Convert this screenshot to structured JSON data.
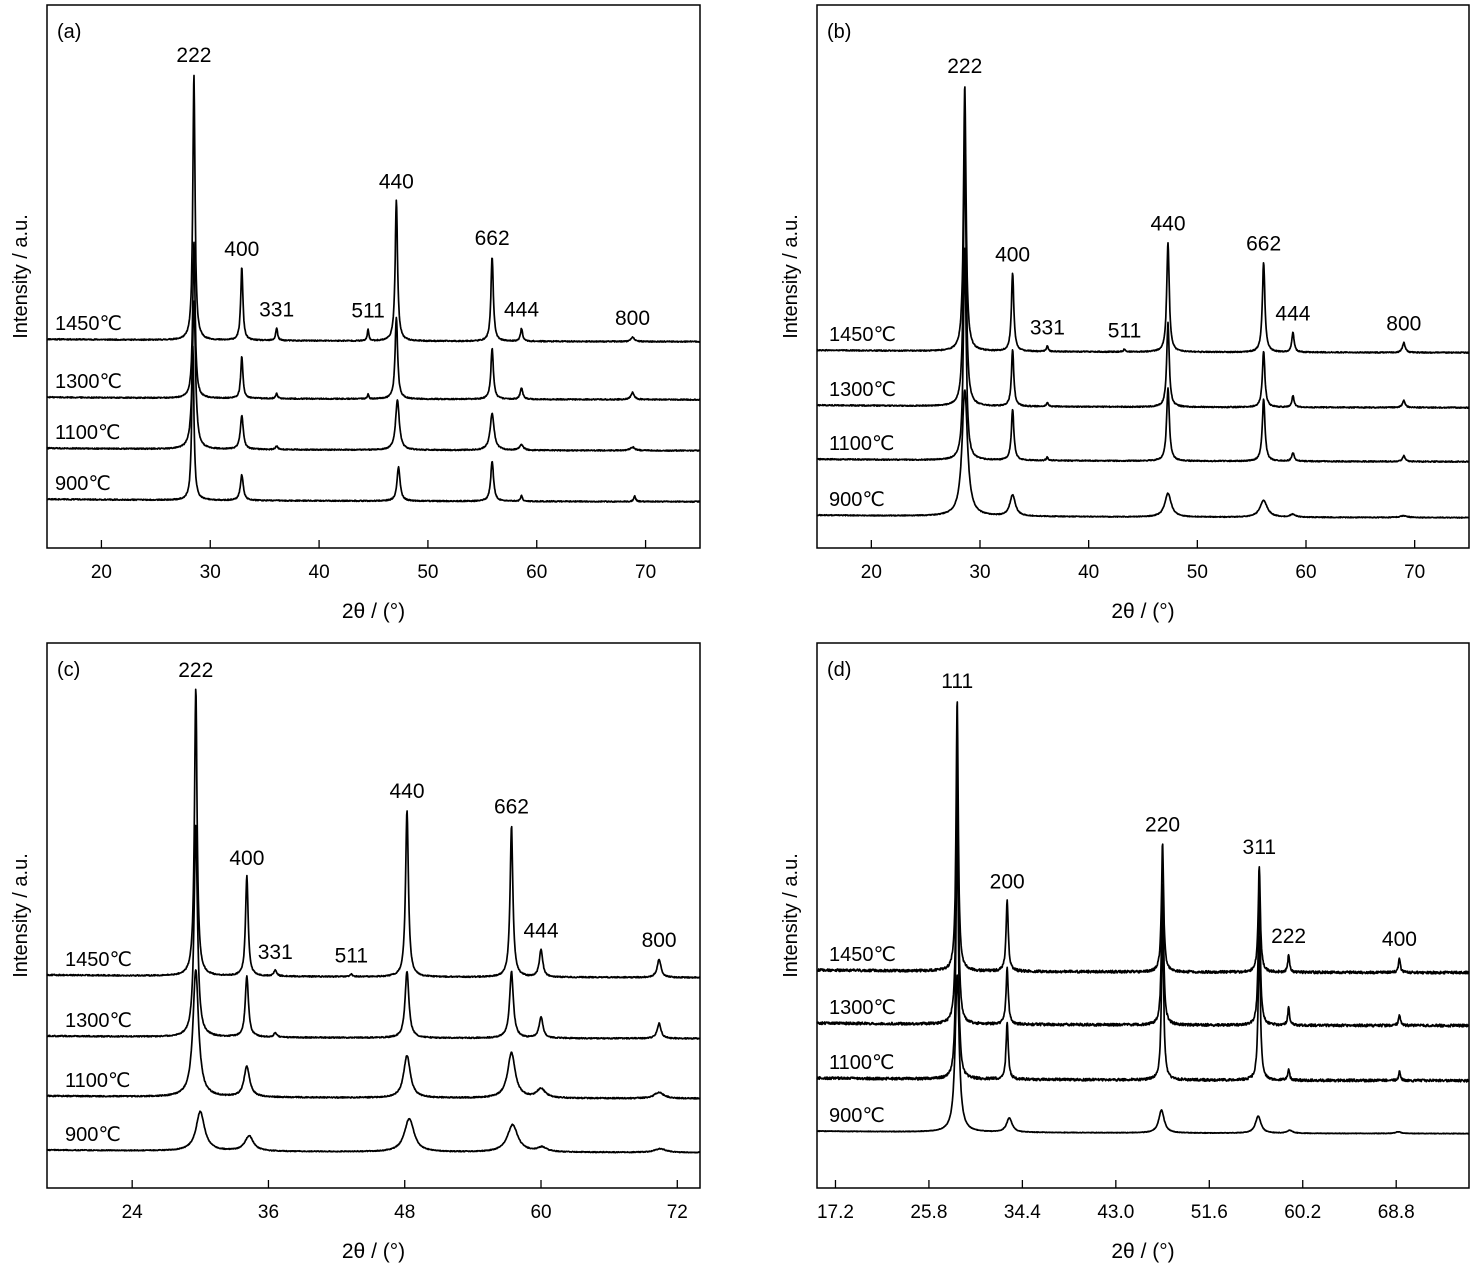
{
  "chart_data": [
    {
      "type": "line",
      "panel_label": "(a)",
      "xlabel": "2θ / (°)",
      "ylabel": "Intensity / a.u.",
      "xlim": [
        15,
        75
      ],
      "xticks": [
        20,
        30,
        40,
        50,
        60,
        70
      ],
      "xtick_labels": [
        "20",
        "30",
        "40",
        "50",
        "60",
        "70"
      ],
      "series": [
        {
          "name": "1450℃",
          "baseline": 0.62,
          "noise": 0.02,
          "peaks": [
            [
              28.5,
              9.5,
              0.12
            ],
            [
              32.9,
              2.6,
              0.12
            ],
            [
              36.1,
              0.45,
              0.1
            ],
            [
              44.5,
              0.42,
              0.08
            ],
            [
              47.1,
              5.0,
              0.13
            ],
            [
              55.9,
              3.0,
              0.13
            ],
            [
              58.6,
              0.45,
              0.12
            ],
            [
              68.8,
              0.15,
              0.18
            ]
          ]
        },
        {
          "name": "1300℃",
          "baseline": 0.42,
          "noise": 0.02,
          "peaks": [
            [
              28.5,
              5.6,
              0.13
            ],
            [
              32.9,
              1.5,
              0.12
            ],
            [
              36.1,
              0.18,
              0.1
            ],
            [
              44.5,
              0.16,
              0.08
            ],
            [
              47.1,
              2.9,
              0.14
            ],
            [
              55.9,
              1.8,
              0.14
            ],
            [
              58.6,
              0.4,
              0.14
            ],
            [
              68.8,
              0.25,
              0.18
            ]
          ]
        },
        {
          "name": "1100℃",
          "baseline": 0.22,
          "noise": 0.02,
          "peaks": [
            [
              28.5,
              5.3,
              0.17
            ],
            [
              32.9,
              1.2,
              0.16
            ],
            [
              36.1,
              0.12,
              0.12
            ],
            [
              47.2,
              1.8,
              0.2
            ],
            [
              55.9,
              1.3,
              0.22
            ],
            [
              58.6,
              0.2,
              0.2
            ],
            [
              68.8,
              0.12,
              0.25
            ]
          ]
        },
        {
          "name": "900℃",
          "baseline": 0.0,
          "noise": 0.02,
          "peaks": [
            [
              28.4,
              5.5,
              0.12
            ],
            [
              32.9,
              0.9,
              0.16
            ],
            [
              47.3,
              1.2,
              0.17
            ],
            [
              55.9,
              1.4,
              0.16
            ],
            [
              58.6,
              0.2,
              0.1
            ],
            [
              69.0,
              0.2,
              0.1
            ]
          ]
        }
      ],
      "annotations": [
        {
          "text": "222",
          "x": 28.5
        },
        {
          "text": "400",
          "x": 32.9
        },
        {
          "text": "331",
          "x": 36.1
        },
        {
          "text": "511",
          "x": 44.5
        },
        {
          "text": "440",
          "x": 47.1
        },
        {
          "text": "662",
          "x": 55.9
        },
        {
          "text": "444",
          "x": 58.6
        },
        {
          "text": "800",
          "x": 68.8
        }
      ]
    },
    {
      "type": "line",
      "panel_label": "(b)",
      "xlabel": "2θ / (°)",
      "ylabel": "Intensity / a.u.",
      "xlim": [
        15,
        75
      ],
      "xticks": [
        20,
        30,
        40,
        50,
        60,
        70
      ],
      "xtick_labels": [
        "20",
        "30",
        "40",
        "50",
        "60",
        "70"
      ],
      "series": [
        {
          "name": "1450℃",
          "baseline": 0.62,
          "noise": 0.02,
          "peaks": [
            [
              28.6,
              9.5,
              0.14
            ],
            [
              33.0,
              2.8,
              0.13
            ],
            [
              36.2,
              0.2,
              0.1
            ],
            [
              43.3,
              0.1,
              0.1
            ],
            [
              47.3,
              3.9,
              0.14
            ],
            [
              56.1,
              3.2,
              0.14
            ],
            [
              58.8,
              0.7,
              0.13
            ],
            [
              69.0,
              0.35,
              0.15
            ]
          ]
        },
        {
          "name": "1300℃",
          "baseline": 0.42,
          "noise": 0.02,
          "peaks": [
            [
              28.6,
              9.5,
              0.14
            ],
            [
              33.0,
              2.0,
              0.13
            ],
            [
              36.2,
              0.15,
              0.1
            ],
            [
              47.3,
              3.0,
              0.14
            ],
            [
              56.1,
              2.0,
              0.14
            ],
            [
              58.8,
              0.4,
              0.13
            ],
            [
              69.0,
              0.25,
              0.15
            ]
          ]
        },
        {
          "name": "1100℃",
          "baseline": 0.22,
          "noise": 0.02,
          "peaks": [
            [
              28.6,
              7.6,
              0.15
            ],
            [
              33.0,
              1.8,
              0.14
            ],
            [
              36.2,
              0.12,
              0.1
            ],
            [
              47.3,
              2.6,
              0.15
            ],
            [
              56.1,
              2.2,
              0.15
            ],
            [
              58.8,
              0.3,
              0.14
            ],
            [
              69.0,
              0.2,
              0.15
            ]
          ]
        },
        {
          "name": "900℃",
          "baseline": 0.0,
          "noise": 0.015,
          "peaks": [
            [
              28.6,
              4.5,
              0.3
            ],
            [
              33.0,
              0.75,
              0.3
            ],
            [
              47.3,
              0.85,
              0.35
            ],
            [
              56.1,
              0.6,
              0.4
            ],
            [
              58.8,
              0.1,
              0.3
            ],
            [
              69.0,
              0.06,
              0.4
            ]
          ]
        }
      ],
      "annotations": [
        {
          "text": "222",
          "x": 28.6
        },
        {
          "text": "400",
          "x": 33.0
        },
        {
          "text": "331",
          "x": 36.2
        },
        {
          "text": "511",
          "x": 43.3
        },
        {
          "text": "440",
          "x": 47.3
        },
        {
          "text": "662",
          "x": 56.1
        },
        {
          "text": "444",
          "x": 58.8
        },
        {
          "text": "800",
          "x": 69.0
        }
      ]
    },
    {
      "type": "line",
      "panel_label": "(c)",
      "xlabel": "2θ / (°)",
      "ylabel": "Intensity / a.u.",
      "xlim": [
        16.5,
        74
      ],
      "xticks": [
        24,
        36,
        48,
        60,
        72
      ],
      "xtick_labels": [
        "24",
        "36",
        "48",
        "60",
        "72"
      ],
      "series": [
        {
          "name": "1450℃",
          "baseline": 0.62,
          "noise": 0.02,
          "peaks": [
            [
              29.6,
              9.5,
              0.14
            ],
            [
              34.1,
              3.3,
              0.14
            ],
            [
              36.6,
              0.2,
              0.15
            ],
            [
              43.3,
              0.08,
              0.1
            ],
            [
              48.2,
              5.5,
              0.15
            ],
            [
              57.4,
              5.0,
              0.15
            ],
            [
              60.0,
              0.9,
              0.18
            ],
            [
              70.4,
              0.6,
              0.2
            ]
          ]
        },
        {
          "name": "1300℃",
          "baseline": 0.42,
          "noise": 0.02,
          "peaks": [
            [
              29.6,
              7.0,
              0.18
            ],
            [
              34.1,
              2.0,
              0.17
            ],
            [
              36.6,
              0.15,
              0.15
            ],
            [
              48.2,
              2.2,
              0.2
            ],
            [
              57.4,
              2.2,
              0.2
            ],
            [
              60.0,
              0.7,
              0.2
            ],
            [
              70.4,
              0.5,
              0.2
            ]
          ]
        },
        {
          "name": "1100℃",
          "baseline": 0.22,
          "noise": 0.02,
          "peaks": [
            [
              29.6,
              4.2,
              0.3
            ],
            [
              34.1,
              1.0,
              0.3
            ],
            [
              48.2,
              1.4,
              0.35
            ],
            [
              57.4,
              1.5,
              0.4
            ],
            [
              60.0,
              0.3,
              0.45
            ],
            [
              70.4,
              0.2,
              0.5
            ]
          ]
        },
        {
          "name": "900℃",
          "baseline": 0.0,
          "noise": 0.015,
          "peaks": [
            [
              30.0,
              1.3,
              0.45
            ],
            [
              34.3,
              0.5,
              0.45
            ],
            [
              48.4,
              1.1,
              0.5
            ],
            [
              57.5,
              0.9,
              0.55
            ],
            [
              60.1,
              0.15,
              0.5
            ],
            [
              70.5,
              0.12,
              0.6
            ]
          ]
        }
      ],
      "annotations": [
        {
          "text": "222",
          "x": 29.6
        },
        {
          "text": "400",
          "x": 34.1
        },
        {
          "text": "331",
          "x": 36.6
        },
        {
          "text": "511",
          "x": 43.3
        },
        {
          "text": "440",
          "x": 48.2
        },
        {
          "text": "662",
          "x": 57.4
        },
        {
          "text": "444",
          "x": 60.0
        },
        {
          "text": "800",
          "x": 70.4
        }
      ]
    },
    {
      "type": "line",
      "panel_label": "(d)",
      "xlabel": "2θ / (°)",
      "ylabel": "Intensity / a.u.",
      "xlim": [
        15.5,
        75.5
      ],
      "xticks": [
        17.2,
        25.8,
        34.4,
        43.0,
        51.6,
        60.2,
        68.8
      ],
      "xtick_labels": [
        "17.2",
        "25.8",
        "34.4",
        "43.0",
        "51.6",
        "60.2",
        "68.8"
      ],
      "series": [
        {
          "name": "1450℃",
          "baseline": 0.62,
          "noise": 0.045,
          "peaks": [
            [
              28.4,
              9.5,
              0.12
            ],
            [
              33.0,
              2.5,
              0.12
            ],
            [
              47.3,
              4.5,
              0.12
            ],
            [
              56.2,
              3.7,
              0.12
            ],
            [
              58.9,
              0.6,
              0.1
            ],
            [
              69.1,
              0.5,
              0.1
            ]
          ]
        },
        {
          "name": "1300℃",
          "baseline": 0.42,
          "noise": 0.045,
          "peaks": [
            [
              28.4,
              9.5,
              0.12
            ],
            [
              33.0,
              2.0,
              0.12
            ],
            [
              47.3,
              5.0,
              0.12
            ],
            [
              56.2,
              4.5,
              0.12
            ],
            [
              58.9,
              0.6,
              0.1
            ],
            [
              69.1,
              0.4,
              0.1
            ]
          ]
        },
        {
          "name": "1100℃",
          "baseline": 0.22,
          "noise": 0.045,
          "peaks": [
            [
              28.4,
              9.5,
              0.12
            ],
            [
              33.0,
              2.0,
              0.12
            ],
            [
              47.3,
              5.5,
              0.12
            ],
            [
              56.2,
              5.0,
              0.12
            ],
            [
              58.9,
              0.4,
              0.1
            ],
            [
              69.1,
              0.3,
              0.1
            ]
          ]
        },
        {
          "name": "900℃",
          "baseline": 0.0,
          "noise": 0.01,
          "peaks": [
            [
              28.4,
              5.5,
              0.22
            ],
            [
              33.2,
              0.5,
              0.3
            ],
            [
              47.2,
              0.8,
              0.3
            ],
            [
              56.1,
              0.6,
              0.3
            ],
            [
              59.0,
              0.1,
              0.3
            ],
            [
              69.0,
              0.06,
              0.3
            ]
          ]
        }
      ],
      "annotations": [
        {
          "text": "111",
          "x": 28.4
        },
        {
          "text": "200",
          "x": 33.0
        },
        {
          "text": "220",
          "x": 47.3
        },
        {
          "text": "311",
          "x": 56.2
        },
        {
          "text": "222",
          "x": 58.9
        },
        {
          "text": "400",
          "x": 69.1
        }
      ]
    }
  ]
}
